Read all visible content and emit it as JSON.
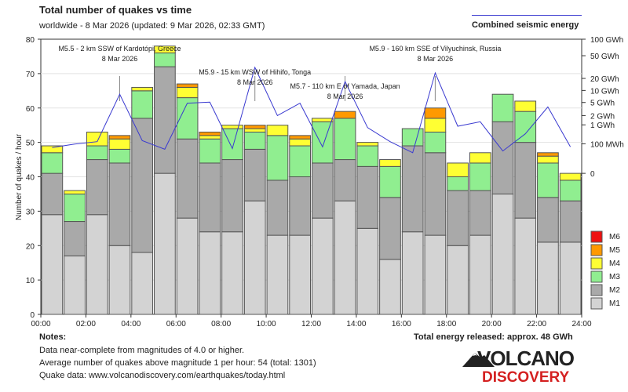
{
  "header": {
    "title": "Total number of quakes vs time",
    "subtitle": "worldwide -  8 Mar 2026 (updated: 9 Mar 2026, 02:33 GMT)",
    "energy_legend_label": "Combined seismic energy"
  },
  "notes": {
    "heading": "Notes:",
    "lines": [
      "Data near-complete from magnitudes of 4.0 or higher.",
      "Average number of quakes above magnitude 1 per hour: 54 (total: 1301)",
      "Quake data: www.volcanodiscovery.com/earthquakes/today.html"
    ],
    "total_energy": "Total energy released: approx. 48 GWh"
  },
  "logo": {
    "line1": "VOLCANO",
    "line2": "DISCOVERY"
  },
  "colors": {
    "M1": "#d3d3d3",
    "M2": "#a9a9a9",
    "M3": "#90ee90",
    "M4": "#ffff33",
    "M5": "#ff9900",
    "M6": "#ee1111",
    "energy_line": "#3a3ad0",
    "bar_edge": "#555555"
  },
  "chart_data": {
    "type": "bar",
    "stacked": true,
    "title": "Total number of quakes vs time",
    "xlabel": "",
    "ylabel": "Number of quakes / hour",
    "ylim": [
      0,
      80
    ],
    "yticks": [
      0,
      10,
      20,
      30,
      40,
      50,
      60,
      70,
      80
    ],
    "xticks": [
      "00:00",
      "02:00",
      "04:00",
      "06:00",
      "08:00",
      "10:00",
      "12:00",
      "14:00",
      "16:00",
      "18:00",
      "20:00",
      "22:00",
      "24:00"
    ],
    "hours": 24,
    "series": [
      {
        "name": "M1",
        "values": [
          29,
          17,
          29,
          20,
          18,
          41,
          28,
          24,
          24,
          33,
          23,
          23,
          28,
          33,
          25,
          16,
          24,
          23,
          20,
          23,
          35,
          28,
          21,
          21
        ]
      },
      {
        "name": "M2",
        "values": [
          12,
          10,
          16,
          24,
          39,
          31,
          23,
          20,
          21,
          15,
          16,
          17,
          16,
          12,
          18,
          18,
          25,
          24,
          16,
          13,
          21,
          22,
          13,
          12
        ]
      },
      {
        "name": "M3",
        "values": [
          6,
          8,
          4,
          4,
          8,
          4,
          12,
          7,
          9,
          5,
          13,
          9,
          12,
          12,
          6,
          9,
          5,
          6,
          4,
          8,
          8,
          9,
          10,
          6
        ]
      },
      {
        "name": "M4",
        "values": [
          2,
          1,
          4,
          3,
          1,
          2,
          3,
          1,
          1,
          1,
          3,
          2,
          1,
          0,
          1,
          2,
          0,
          4,
          4,
          3,
          0,
          3,
          2,
          2
        ]
      },
      {
        "name": "M5",
        "values": [
          0,
          0,
          0,
          1,
          0,
          0,
          1,
          1,
          0,
          1,
          0,
          1,
          0,
          2,
          0,
          0,
          0,
          3,
          0,
          0,
          0,
          0,
          1,
          0
        ]
      },
      {
        "name": "M6",
        "values": [
          0,
          0,
          0,
          0,
          0,
          0,
          0,
          0,
          0,
          0,
          0,
          0,
          0,
          0,
          0,
          0,
          0,
          0,
          0,
          0,
          0,
          0,
          0,
          0
        ]
      }
    ],
    "legend": [
      "M6",
      "M5",
      "M4",
      "M3",
      "M2",
      "M1"
    ],
    "energy_axis_labels": [
      "100 GWh",
      "50 GWh",
      "20 GWh",
      "10 GWh",
      "5 GWh",
      "2 GWh",
      "1 GWh",
      "100 MWh",
      "0"
    ],
    "energy_axis_positions": [
      80,
      75.2,
      68.6,
      65.1,
      61.6,
      57.8,
      55.1,
      49.6,
      41
    ],
    "energy_line": [
      48.5,
      49.5,
      50.2,
      64.0,
      50.5,
      48.0,
      61.4,
      61.7,
      48.2,
      71.8,
      57.8,
      61.4,
      48.7,
      67.7,
      54.3,
      50.2,
      47.0,
      70.2,
      54.7,
      56.0,
      47.5,
      52.5,
      60.3,
      48.7
    ],
    "annotations": [
      {
        "hour": 3.5,
        "text1": "M5.5 - 2 km SSW of Kardotópi, Greece",
        "text2": "8 Mar 2026"
      },
      {
        "hour": 9.5,
        "text1": "M5.9 - 15 km WSW of Hihifo, Tonga",
        "text2": "8 Mar 2026"
      },
      {
        "hour": 13.5,
        "text1": "M5.7 - 110 km E of Yamada, Japan",
        "text2": "8 Mar 2026"
      },
      {
        "hour": 17.5,
        "text1": "M5.9 - 160 km SSE of Vilyuchinsk, Russia",
        "text2": "8 Mar 2026"
      }
    ]
  }
}
